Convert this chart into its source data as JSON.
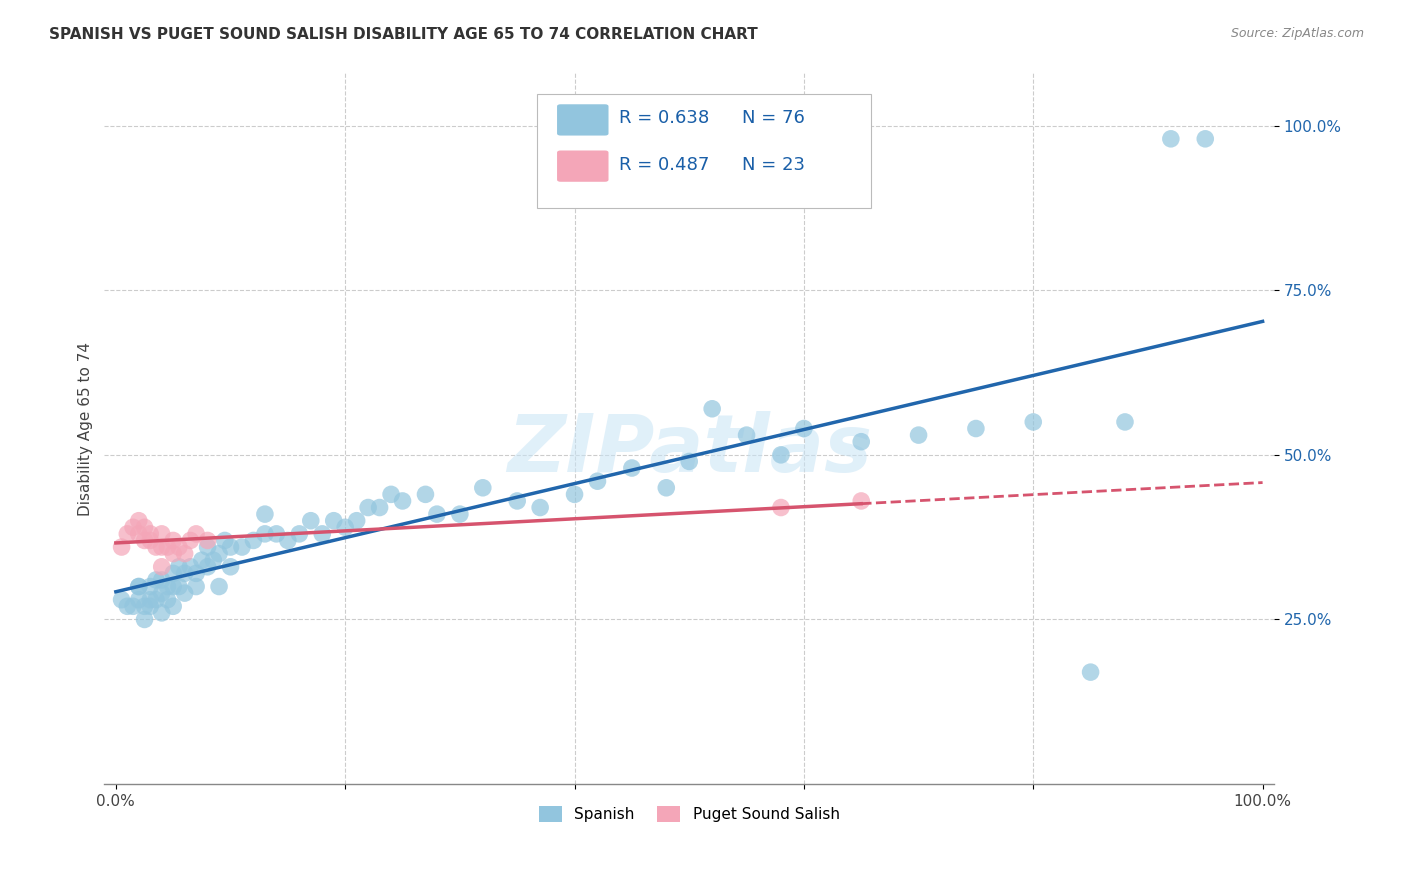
{
  "title": "SPANISH VS PUGET SOUND SALISH DISABILITY AGE 65 TO 74 CORRELATION CHART",
  "source": "Source: ZipAtlas.com",
  "ylabel": "Disability Age 65 to 74",
  "y_ticks": [
    0.25,
    0.5,
    0.75,
    1.0
  ],
  "y_tick_labels": [
    "25.0%",
    "50.0%",
    "75.0%",
    "100.0%"
  ],
  "spanish_r": 0.638,
  "spanish_n": 76,
  "salish_r": 0.487,
  "salish_n": 23,
  "blue_color": "#92c5de",
  "pink_color": "#f4a6b8",
  "blue_line_color": "#2166ac",
  "pink_line_color": "#d6546e",
  "legend_blue_label": "Spanish",
  "legend_pink_label": "Puget Sound Salish",
  "watermark": "ZIPatlas",
  "spanish_x": [
    0.005,
    0.01,
    0.015,
    0.02,
    0.02,
    0.02,
    0.025,
    0.025,
    0.03,
    0.03,
    0.03,
    0.035,
    0.035,
    0.04,
    0.04,
    0.04,
    0.045,
    0.045,
    0.05,
    0.05,
    0.05,
    0.055,
    0.055,
    0.06,
    0.06,
    0.065,
    0.07,
    0.07,
    0.075,
    0.08,
    0.08,
    0.085,
    0.09,
    0.09,
    0.095,
    0.1,
    0.1,
    0.11,
    0.12,
    0.13,
    0.13,
    0.14,
    0.15,
    0.16,
    0.17,
    0.18,
    0.19,
    0.2,
    0.21,
    0.22,
    0.23,
    0.24,
    0.25,
    0.27,
    0.28,
    0.3,
    0.32,
    0.35,
    0.37,
    0.4,
    0.42,
    0.45,
    0.48,
    0.5,
    0.52,
    0.55,
    0.58,
    0.6,
    0.65,
    0.7,
    0.75,
    0.8,
    0.85,
    0.88,
    0.92,
    0.95
  ],
  "spanish_y": [
    0.28,
    0.27,
    0.27,
    0.28,
    0.3,
    0.3,
    0.25,
    0.27,
    0.27,
    0.28,
    0.3,
    0.28,
    0.31,
    0.26,
    0.29,
    0.31,
    0.28,
    0.3,
    0.27,
    0.3,
    0.32,
    0.3,
    0.33,
    0.29,
    0.32,
    0.33,
    0.3,
    0.32,
    0.34,
    0.33,
    0.36,
    0.34,
    0.3,
    0.35,
    0.37,
    0.33,
    0.36,
    0.36,
    0.37,
    0.38,
    0.41,
    0.38,
    0.37,
    0.38,
    0.4,
    0.38,
    0.4,
    0.39,
    0.4,
    0.42,
    0.42,
    0.44,
    0.43,
    0.44,
    0.41,
    0.41,
    0.45,
    0.43,
    0.42,
    0.44,
    0.46,
    0.48,
    0.45,
    0.49,
    0.57,
    0.53,
    0.5,
    0.54,
    0.52,
    0.53,
    0.54,
    0.55,
    0.17,
    0.55,
    0.98,
    0.98
  ],
  "salish_x": [
    0.005,
    0.01,
    0.015,
    0.02,
    0.02,
    0.025,
    0.025,
    0.03,
    0.03,
    0.035,
    0.04,
    0.04,
    0.04,
    0.045,
    0.05,
    0.05,
    0.055,
    0.06,
    0.065,
    0.07,
    0.08,
    0.58,
    0.65
  ],
  "salish_y": [
    0.36,
    0.38,
    0.39,
    0.38,
    0.4,
    0.37,
    0.39,
    0.37,
    0.38,
    0.36,
    0.33,
    0.36,
    0.38,
    0.36,
    0.35,
    0.37,
    0.36,
    0.35,
    0.37,
    0.38,
    0.37,
    0.42,
    0.43
  ]
}
